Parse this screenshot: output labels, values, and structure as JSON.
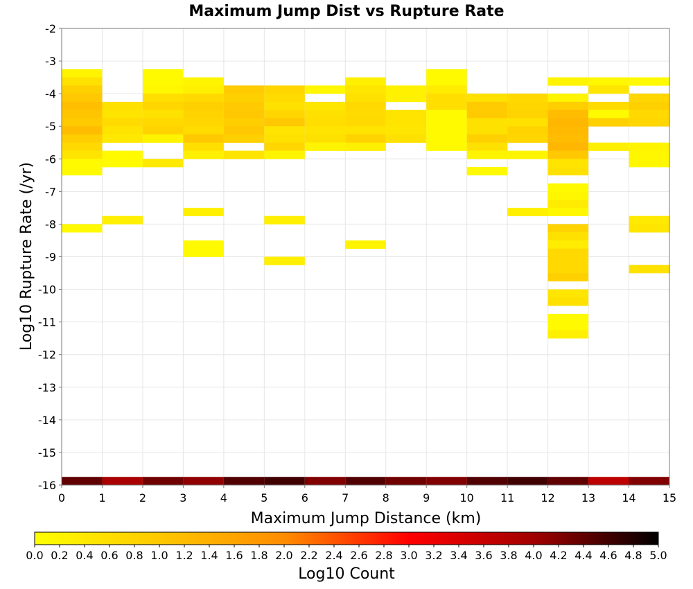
{
  "chart_data": {
    "type": "heatmap",
    "title": "Maximum Jump Dist vs Rupture Rate",
    "xlabel": "Maximum Jump Distance (km)",
    "ylabel": "Log10 Rupture Rate (/yr)",
    "xlim": [
      0,
      15
    ],
    "ylim": [
      -16,
      -2
    ],
    "x_bin_width": 1,
    "y_bin_width": 0.25,
    "grid": true,
    "x_ticks": [
      "0",
      "1",
      "2",
      "3",
      "4",
      "5",
      "6",
      "7",
      "8",
      "9",
      "10",
      "11",
      "12",
      "13",
      "14",
      "15"
    ],
    "y_ticks": [
      "-2",
      "-3",
      "-4",
      "-5",
      "-6",
      "-7",
      "-8",
      "-9",
      "-10",
      "-11",
      "-12",
      "-13",
      "-14",
      "-15",
      "-16"
    ],
    "colorbar": {
      "label": "Log10 Count",
      "min": 0.0,
      "max": 5.0,
      "ticks": [
        "0.0",
        "0.2",
        "0.4",
        "0.6",
        "0.8",
        "1.0",
        "1.2",
        "1.4",
        "1.6",
        "1.8",
        "2.0",
        "2.2",
        "2.4",
        "2.6",
        "2.8",
        "3.0",
        "3.2",
        "3.4",
        "3.6",
        "3.8",
        "4.0",
        "4.2",
        "4.4",
        "4.6",
        "4.8",
        "5.0"
      ],
      "colors": [
        "#ffff00",
        "#ffc800",
        "#ff8c00",
        "#ff0000",
        "#a00000",
        "#000000"
      ]
    },
    "cells": [
      {
        "x": 0,
        "y": -3.5,
        "v": 0.2
      },
      {
        "x": 0,
        "y": -3.75,
        "v": 0.55
      },
      {
        "x": 0,
        "y": -4.0,
        "v": 0.85
      },
      {
        "x": 0,
        "y": -4.25,
        "v": 1.0
      },
      {
        "x": 0,
        "y": -4.5,
        "v": 1.15
      },
      {
        "x": 0,
        "y": -4.75,
        "v": 1.05
      },
      {
        "x": 0,
        "y": -5.0,
        "v": 0.95
      },
      {
        "x": 0,
        "y": -5.25,
        "v": 1.2
      },
      {
        "x": 0,
        "y": -5.5,
        "v": 0.9
      },
      {
        "x": 0,
        "y": -5.75,
        "v": 0.7
      },
      {
        "x": 0,
        "y": -6.0,
        "v": 0.5
      },
      {
        "x": 0,
        "y": -6.25,
        "v": 0.1
      },
      {
        "x": 0,
        "y": -6.5,
        "v": 0.1
      },
      {
        "x": 0,
        "y": -8.25,
        "v": 0.1
      },
      {
        "x": 1,
        "y": -4.5,
        "v": 0.55
      },
      {
        "x": 1,
        "y": -4.75,
        "v": 0.5
      },
      {
        "x": 1,
        "y": -5.0,
        "v": 0.65
      },
      {
        "x": 1,
        "y": -5.25,
        "v": 0.5
      },
      {
        "x": 1,
        "y": -5.5,
        "v": 0.4
      },
      {
        "x": 1,
        "y": -6.0,
        "v": 0.1
      },
      {
        "x": 1,
        "y": -6.25,
        "v": 0.1
      },
      {
        "x": 1,
        "y": -8.0,
        "v": 0.3
      },
      {
        "x": 2,
        "y": -3.5,
        "v": 0.1
      },
      {
        "x": 2,
        "y": -3.75,
        "v": 0.1
      },
      {
        "x": 2,
        "y": -4.0,
        "v": 0.15
      },
      {
        "x": 2,
        "y": -4.25,
        "v": 0.6
      },
      {
        "x": 2,
        "y": -4.5,
        "v": 0.75
      },
      {
        "x": 2,
        "y": -4.75,
        "v": 0.55
      },
      {
        "x": 2,
        "y": -5.0,
        "v": 0.7
      },
      {
        "x": 2,
        "y": -5.25,
        "v": 0.8
      },
      {
        "x": 2,
        "y": -5.5,
        "v": 0.2
      },
      {
        "x": 2,
        "y": -6.25,
        "v": 0.4
      },
      {
        "x": 3,
        "y": -3.75,
        "v": 0.2
      },
      {
        "x": 3,
        "y": -4.0,
        "v": 0.3
      },
      {
        "x": 3,
        "y": -4.25,
        "v": 0.7
      },
      {
        "x": 3,
        "y": -4.5,
        "v": 0.85
      },
      {
        "x": 3,
        "y": -4.75,
        "v": 0.8
      },
      {
        "x": 3,
        "y": -5.0,
        "v": 0.75
      },
      {
        "x": 3,
        "y": -5.25,
        "v": 0.65
      },
      {
        "x": 3,
        "y": -5.5,
        "v": 1.0
      },
      {
        "x": 3,
        "y": -5.75,
        "v": 0.6
      },
      {
        "x": 3,
        "y": -6.0,
        "v": 0.3
      },
      {
        "x": 3,
        "y": -7.75,
        "v": 0.3
      },
      {
        "x": 3,
        "y": -8.75,
        "v": 0.1
      },
      {
        "x": 3,
        "y": -9.0,
        "v": 0.1
      },
      {
        "x": 4,
        "y": -4.0,
        "v": 0.95
      },
      {
        "x": 4,
        "y": -4.25,
        "v": 0.85
      },
      {
        "x": 4,
        "y": -4.5,
        "v": 0.95
      },
      {
        "x": 4,
        "y": -4.75,
        "v": 1.0
      },
      {
        "x": 4,
        "y": -5.0,
        "v": 0.9
      },
      {
        "x": 4,
        "y": -5.25,
        "v": 1.0
      },
      {
        "x": 4,
        "y": -5.5,
        "v": 0.85
      },
      {
        "x": 4,
        "y": -6.0,
        "v": 0.5
      },
      {
        "x": 5,
        "y": -4.0,
        "v": 0.75
      },
      {
        "x": 5,
        "y": -4.25,
        "v": 0.65
      },
      {
        "x": 5,
        "y": -4.5,
        "v": 0.55
      },
      {
        "x": 5,
        "y": -4.75,
        "v": 0.75
      },
      {
        "x": 5,
        "y": -5.0,
        "v": 1.0
      },
      {
        "x": 5,
        "y": -5.25,
        "v": 0.5
      },
      {
        "x": 5,
        "y": -5.5,
        "v": 0.55
      },
      {
        "x": 5,
        "y": -5.75,
        "v": 0.75
      },
      {
        "x": 5,
        "y": -6.0,
        "v": 0.2
      },
      {
        "x": 5,
        "y": -8.0,
        "v": 0.3
      },
      {
        "x": 5,
        "y": -9.25,
        "v": 0.3
      },
      {
        "x": 6,
        "y": -4.0,
        "v": 0.15
      },
      {
        "x": 6,
        "y": -4.5,
        "v": 0.45
      },
      {
        "x": 6,
        "y": -4.75,
        "v": 0.55
      },
      {
        "x": 6,
        "y": -5.0,
        "v": 0.6
      },
      {
        "x": 6,
        "y": -5.25,
        "v": 0.5
      },
      {
        "x": 6,
        "y": -5.5,
        "v": 0.55
      },
      {
        "x": 6,
        "y": -5.75,
        "v": 0.2
      },
      {
        "x": 7,
        "y": -3.75,
        "v": 0.3
      },
      {
        "x": 7,
        "y": -4.0,
        "v": 0.45
      },
      {
        "x": 7,
        "y": -4.25,
        "v": 0.55
      },
      {
        "x": 7,
        "y": -4.5,
        "v": 0.7
      },
      {
        "x": 7,
        "y": -4.75,
        "v": 0.65
      },
      {
        "x": 7,
        "y": -5.0,
        "v": 0.7
      },
      {
        "x": 7,
        "y": -5.25,
        "v": 0.5
      },
      {
        "x": 7,
        "y": -5.5,
        "v": 0.8
      },
      {
        "x": 7,
        "y": -5.75,
        "v": 0.3
      },
      {
        "x": 7,
        "y": -8.75,
        "v": 0.2
      },
      {
        "x": 8,
        "y": -4.0,
        "v": 0.25
      },
      {
        "x": 8,
        "y": -4.25,
        "v": 0.25
      },
      {
        "x": 8,
        "y": -4.75,
        "v": 0.5
      },
      {
        "x": 8,
        "y": -5.0,
        "v": 0.5
      },
      {
        "x": 8,
        "y": -5.25,
        "v": 0.45
      },
      {
        "x": 8,
        "y": -5.5,
        "v": 0.55
      },
      {
        "x": 9,
        "y": -3.5,
        "v": 0.1
      },
      {
        "x": 9,
        "y": -3.75,
        "v": 0.1
      },
      {
        "x": 9,
        "y": -4.0,
        "v": 0.35
      },
      {
        "x": 9,
        "y": -4.25,
        "v": 0.6
      },
      {
        "x": 9,
        "y": -4.5,
        "v": 0.6
      },
      {
        "x": 9,
        "y": -4.75,
        "v": 0.1
      },
      {
        "x": 9,
        "y": -5.0,
        "v": 0.1
      },
      {
        "x": 9,
        "y": -5.25,
        "v": 0.1
      },
      {
        "x": 9,
        "y": -5.5,
        "v": 0.1
      },
      {
        "x": 9,
        "y": -5.75,
        "v": 0.1
      },
      {
        "x": 10,
        "y": -4.25,
        "v": 0.55
      },
      {
        "x": 10,
        "y": -4.5,
        "v": 0.95
      },
      {
        "x": 10,
        "y": -4.75,
        "v": 0.95
      },
      {
        "x": 10,
        "y": -5.0,
        "v": 0.55
      },
      {
        "x": 10,
        "y": -5.25,
        "v": 0.55
      },
      {
        "x": 10,
        "y": -5.5,
        "v": 0.85
      },
      {
        "x": 10,
        "y": -5.75,
        "v": 0.55
      },
      {
        "x": 10,
        "y": -6.0,
        "v": 0.2
      },
      {
        "x": 10,
        "y": -6.5,
        "v": 0.1
      },
      {
        "x": 11,
        "y": -4.25,
        "v": 0.7
      },
      {
        "x": 11,
        "y": -4.5,
        "v": 0.75
      },
      {
        "x": 11,
        "y": -4.75,
        "v": 0.8
      },
      {
        "x": 11,
        "y": -5.0,
        "v": 0.55
      },
      {
        "x": 11,
        "y": -5.25,
        "v": 0.8
      },
      {
        "x": 11,
        "y": -5.5,
        "v": 0.75
      },
      {
        "x": 11,
        "y": -6.0,
        "v": 0.2
      },
      {
        "x": 11,
        "y": -7.75,
        "v": 0.3
      },
      {
        "x": 12,
        "y": -3.75,
        "v": 0.2
      },
      {
        "x": 12,
        "y": -4.25,
        "v": 0.2
      },
      {
        "x": 12,
        "y": -4.5,
        "v": 0.9
      },
      {
        "x": 12,
        "y": -4.75,
        "v": 1.2
      },
      {
        "x": 12,
        "y": -5.0,
        "v": 1.3
      },
      {
        "x": 12,
        "y": -5.25,
        "v": 1.25
      },
      {
        "x": 12,
        "y": -5.5,
        "v": 1.2
      },
      {
        "x": 12,
        "y": -5.75,
        "v": 1.3
      },
      {
        "x": 12,
        "y": -6.0,
        "v": 1.0
      },
      {
        "x": 12,
        "y": -6.25,
        "v": 0.5
      },
      {
        "x": 12,
        "y": -6.5,
        "v": 0.55
      },
      {
        "x": 12,
        "y": -7.0,
        "v": 0.1
      },
      {
        "x": 12,
        "y": -7.25,
        "v": 0.15
      },
      {
        "x": 12,
        "y": -7.5,
        "v": 0.35
      },
      {
        "x": 12,
        "y": -7.75,
        "v": 0.15
      },
      {
        "x": 12,
        "y": -8.25,
        "v": 0.8
      },
      {
        "x": 12,
        "y": -8.5,
        "v": 0.55
      },
      {
        "x": 12,
        "y": -8.75,
        "v": 0.35
      },
      {
        "x": 12,
        "y": -9.0,
        "v": 0.7
      },
      {
        "x": 12,
        "y": -9.25,
        "v": 0.7
      },
      {
        "x": 12,
        "y": -9.5,
        "v": 0.7
      },
      {
        "x": 12,
        "y": -9.75,
        "v": 0.85
      },
      {
        "x": 12,
        "y": -10.25,
        "v": 0.45
      },
      {
        "x": 12,
        "y": -10.5,
        "v": 0.55
      },
      {
        "x": 12,
        "y": -11.0,
        "v": 0.1
      },
      {
        "x": 12,
        "y": -11.25,
        "v": 0.1
      },
      {
        "x": 12,
        "y": -11.5,
        "v": 0.3
      },
      {
        "x": 13,
        "y": -3.75,
        "v": 0.15
      },
      {
        "x": 13,
        "y": -4.0,
        "v": 0.45
      },
      {
        "x": 13,
        "y": -4.5,
        "v": 0.65
      },
      {
        "x": 13,
        "y": -4.75,
        "v": 0.1
      },
      {
        "x": 13,
        "y": -5.0,
        "v": 0.85
      },
      {
        "x": 13,
        "y": -5.75,
        "v": 0.3
      },
      {
        "x": 14,
        "y": -3.75,
        "v": 0.1
      },
      {
        "x": 14,
        "y": -4.25,
        "v": 0.75
      },
      {
        "x": 14,
        "y": -4.5,
        "v": 0.85
      },
      {
        "x": 14,
        "y": -4.75,
        "v": 0.7
      },
      {
        "x": 14,
        "y": -5.0,
        "v": 0.75
      },
      {
        "x": 14,
        "y": -5.75,
        "v": 0.2
      },
      {
        "x": 14,
        "y": -6.0,
        "v": 0.15
      },
      {
        "x": 14,
        "y": -6.25,
        "v": 0.15
      },
      {
        "x": 14,
        "y": -8.0,
        "v": 0.4
      },
      {
        "x": 14,
        "y": -8.25,
        "v": 0.45
      },
      {
        "x": 14,
        "y": -9.5,
        "v": 0.55
      },
      {
        "x": 0,
        "y": -16.0,
        "v": 4.4
      },
      {
        "x": 1,
        "y": -16.0,
        "v": 3.9
      },
      {
        "x": 2,
        "y": -16.0,
        "v": 4.3
      },
      {
        "x": 3,
        "y": -16.0,
        "v": 4.1
      },
      {
        "x": 4,
        "y": -16.0,
        "v": 4.5
      },
      {
        "x": 5,
        "y": -16.0,
        "v": 4.6
      },
      {
        "x": 6,
        "y": -16.0,
        "v": 4.2
      },
      {
        "x": 7,
        "y": -16.0,
        "v": 4.5
      },
      {
        "x": 8,
        "y": -16.0,
        "v": 4.3
      },
      {
        "x": 9,
        "y": -16.0,
        "v": 4.2
      },
      {
        "x": 10,
        "y": -16.0,
        "v": 4.5
      },
      {
        "x": 11,
        "y": -16.0,
        "v": 4.6
      },
      {
        "x": 12,
        "y": -16.0,
        "v": 4.4
      },
      {
        "x": 13,
        "y": -16.0,
        "v": 3.7
      },
      {
        "x": 14,
        "y": -16.0,
        "v": 4.2
      }
    ]
  }
}
